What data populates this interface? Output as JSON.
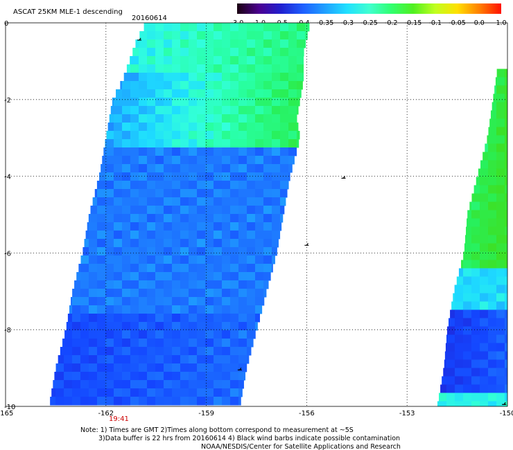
{
  "title": "ASCAT 25KM MLE-1 descending",
  "date": "20160614",
  "time_label": "19:41",
  "time_label_color": "#cc0000",
  "notes": [
    "Note: 1) Times are GMT 2)Times along bottom correspond to measurement at ~5S",
    "3)Data buffer is 22 hrs from 20160614 4) Black wind barbs indicate possible contamination",
    "NOAA/NESDIS/Center for Satellite Applications and Research"
  ],
  "chart_data": {
    "type": "heatmap",
    "title": "ASCAT 25KM MLE-1 descending",
    "subtitle": "20160614",
    "xlim": [
      -165,
      -150
    ],
    "ylim": [
      -10,
      0
    ],
    "x_ticks": [
      -165,
      -162,
      -159,
      -156,
      -153,
      -150
    ],
    "x_tick_labels": [
      "-165",
      "-162",
      "-159",
      "-156",
      "-153",
      "-150"
    ],
    "y_ticks": [
      0,
      -2,
      -4,
      -6,
      -8,
      -10
    ],
    "y_tick_labels": [
      "0",
      "-2",
      "-4",
      "-6",
      "-8",
      "-10"
    ],
    "grid": true,
    "colorbar": {
      "tick_labels": [
        "-3.0",
        "-1.0",
        "-0.5",
        "-0.4",
        "-0.35",
        "-0.3",
        "-0.25",
        "-0.2",
        "-0.15",
        "-0.1",
        "-0.05",
        "0.0",
        "1.0"
      ],
      "colors": [
        "#1a0010",
        "#4b0090",
        "#2020d0",
        "#1e5fff",
        "#1fa0ff",
        "#20e0ff",
        "#40ffd0",
        "#30ff70",
        "#50f020",
        "#c0ff20",
        "#ffe000",
        "#ff8000",
        "#ff1000"
      ]
    },
    "swaths": [
      {
        "name": "west",
        "west_edge": [
          [
            -160.8,
            0
          ],
          [
            -161.1,
            -0.5
          ],
          [
            -161.3,
            -1
          ],
          [
            -161.5,
            -1.5
          ],
          [
            -161.8,
            -2
          ],
          [
            -162,
            -3
          ],
          [
            -162.2,
            -4
          ],
          [
            -162.5,
            -5
          ],
          [
            -162.7,
            -6
          ],
          [
            -163,
            -7
          ],
          [
            -163.2,
            -8
          ],
          [
            -163.5,
            -9
          ],
          [
            -163.7,
            -10
          ]
        ],
        "east_edge": [
          [
            -155.9,
            0
          ],
          [
            -156.1,
            -0.8
          ],
          [
            -156.1,
            -1.5
          ],
          [
            -156.3,
            -2.5
          ],
          [
            -156.2,
            -3
          ],
          [
            -156.5,
            -4
          ],
          [
            -156.7,
            -5
          ],
          [
            -156.9,
            -6
          ],
          [
            -157.2,
            -7
          ],
          [
            -157.5,
            -8
          ],
          [
            -157.8,
            -9
          ],
          [
            -158,
            -10
          ]
        ],
        "value_bands": [
          {
            "lat_range": [
              0,
              -1.2
            ],
            "west_value": -0.28,
            "east_value": -0.22
          },
          {
            "lat_range": [
              -1.2,
              -3.2
            ],
            "west_value": -0.33,
            "east_value": -0.2
          },
          {
            "lat_range": [
              -3.2,
              -7.5
            ],
            "west_value": -0.36,
            "east_value": -0.36
          },
          {
            "lat_range": [
              -7.5,
              -10
            ],
            "west_value": -0.4,
            "east_value": -0.37
          }
        ]
      },
      {
        "name": "east",
        "west_edge": [
          [
            -150.3,
            -1.2
          ],
          [
            -150.6,
            -3
          ],
          [
            -150.9,
            -4
          ],
          [
            -151.2,
            -5
          ],
          [
            -151.3,
            -6
          ],
          [
            -151.6,
            -7
          ],
          [
            -151.8,
            -8
          ],
          [
            -151.9,
            -9
          ],
          [
            -152.1,
            -10
          ]
        ],
        "east_edge": [
          [
            -150,
            -1.2
          ],
          [
            -150,
            -10
          ]
        ],
        "value_bands": [
          {
            "lat_range": [
              -1.2,
              -6.5
            ],
            "west_value": -0.2,
            "east_value": -0.15
          },
          {
            "lat_range": [
              -6.5,
              -7.5
            ],
            "west_value": -0.3,
            "east_value": -0.3
          },
          {
            "lat_range": [
              -7.5,
              -9.6
            ],
            "west_value": -0.42,
            "east_value": -0.38
          },
          {
            "lat_range": [
              -9.6,
              -10
            ],
            "west_value": -0.28,
            "east_value": -0.28
          }
        ]
      }
    ],
    "wind_barbs": [
      [
        -161,
        -0.45
      ],
      [
        -154.9,
        -4.05
      ],
      [
        -156,
        -5.8
      ],
      [
        -158,
        -9.05
      ],
      [
        -150.1,
        -9.95
      ]
    ]
  }
}
